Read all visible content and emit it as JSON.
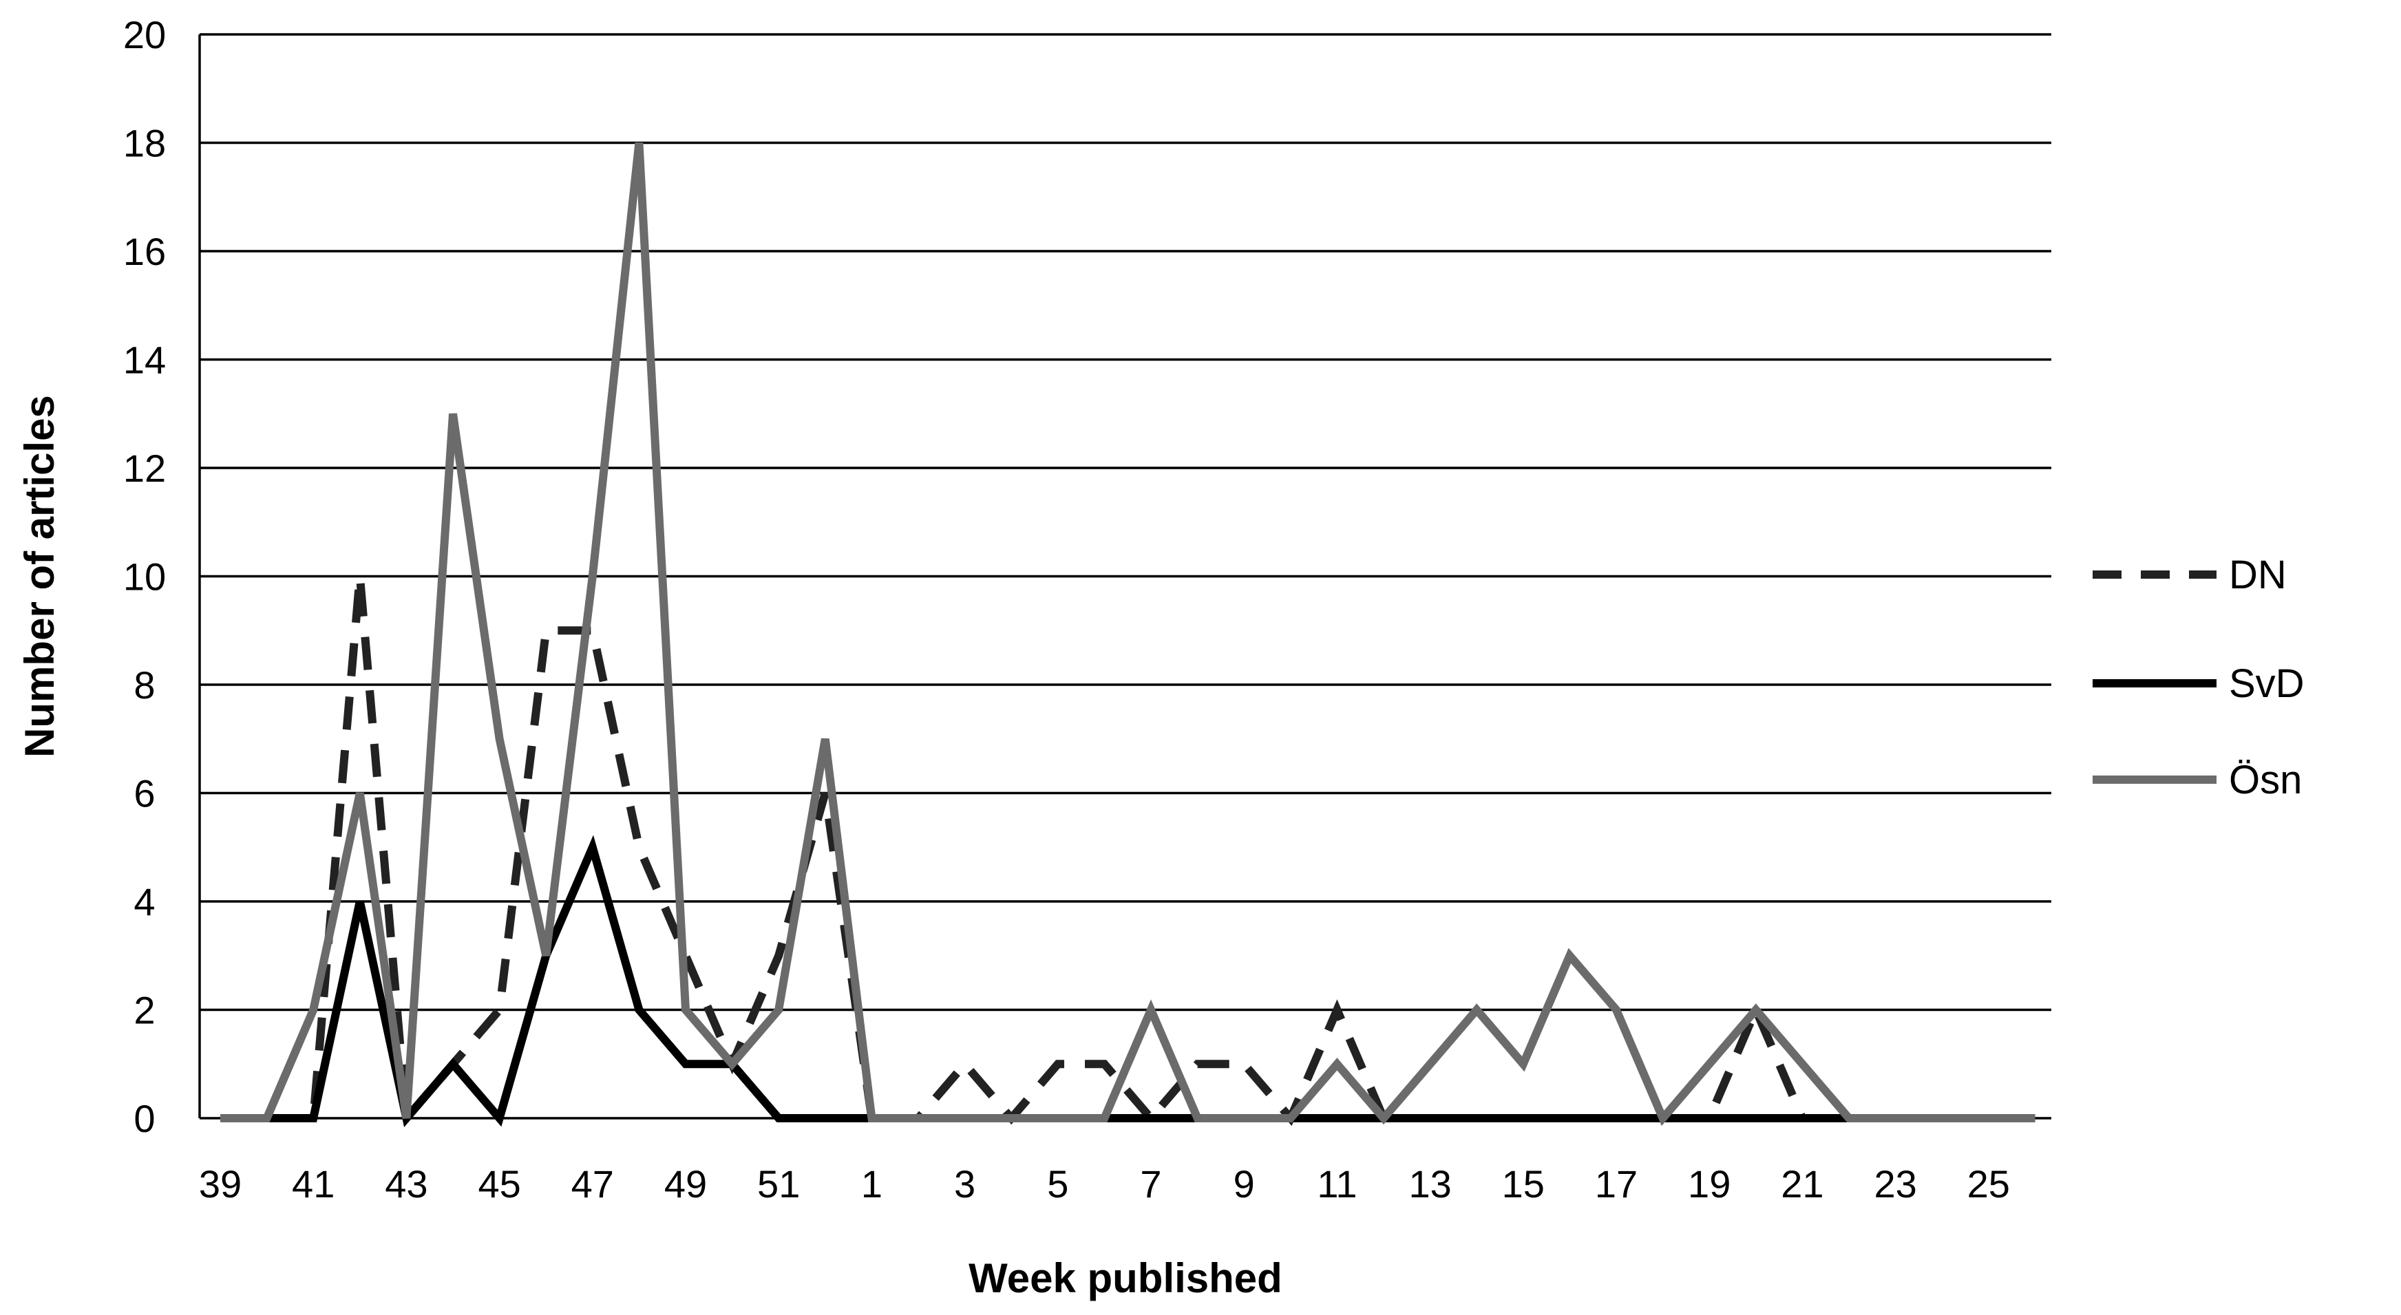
{
  "chart_data": {
    "type": "line",
    "title": "",
    "xlabel": "Week published",
    "ylabel": "Number of articles",
    "ylim": [
      0,
      20
    ],
    "yticks": [
      "0",
      "2",
      "4",
      "6",
      "8",
      "10",
      "12",
      "14",
      "16",
      "18",
      "20"
    ],
    "x": [
      "39",
      "40",
      "41",
      "42",
      "43",
      "44",
      "45",
      "46",
      "47",
      "48",
      "49",
      "50",
      "51",
      "52",
      "1",
      "2",
      "3",
      "4",
      "5",
      "6",
      "7",
      "8",
      "9",
      "10",
      "11",
      "12",
      "13",
      "14",
      "15",
      "16",
      "17",
      "18",
      "19",
      "20",
      "21",
      "22",
      "23",
      "24",
      "25",
      "26"
    ],
    "x_tick_labels": [
      "39",
      "41",
      "43",
      "45",
      "47",
      "49",
      "51",
      "1",
      "3",
      "5",
      "7",
      "9",
      "11",
      "13",
      "15",
      "17",
      "19",
      "21",
      "23",
      "25"
    ],
    "grid": "horizontal",
    "legend_position": "right",
    "series": [
      {
        "name": "DN",
        "style": "dashed",
        "color": "#222222",
        "values": [
          0,
          0,
          0,
          10,
          0,
          1,
          2,
          9,
          9,
          5,
          3,
          1,
          3,
          6,
          0,
          0,
          1,
          0,
          1,
          1,
          0,
          1,
          1,
          0,
          2,
          0,
          0,
          0,
          0,
          0,
          0,
          0,
          0,
          2,
          0,
          0,
          0,
          0,
          0,
          0
        ]
      },
      {
        "name": "SvD",
        "style": "solid",
        "color": "#000000",
        "values": [
          0,
          0,
          0,
          4,
          0,
          1,
          0,
          3,
          5,
          2,
          1,
          1,
          0,
          0,
          0,
          0,
          0,
          0,
          0,
          0,
          0,
          0,
          0,
          0,
          0,
          0,
          0,
          0,
          0,
          0,
          0,
          0,
          0,
          0,
          0,
          0,
          0,
          0,
          0,
          0
        ]
      },
      {
        "name": "Ösn",
        "style": "solid",
        "color": "#6b6b6b",
        "values": [
          0,
          0,
          2,
          6,
          0,
          13,
          7,
          3,
          10,
          18,
          2,
          1,
          2,
          7,
          0,
          0,
          0,
          0,
          0,
          0,
          2,
          0,
          0,
          0,
          1,
          0,
          1,
          2,
          1,
          3,
          2,
          0,
          1,
          2,
          1,
          0,
          0,
          0,
          0,
          0
        ]
      }
    ]
  }
}
